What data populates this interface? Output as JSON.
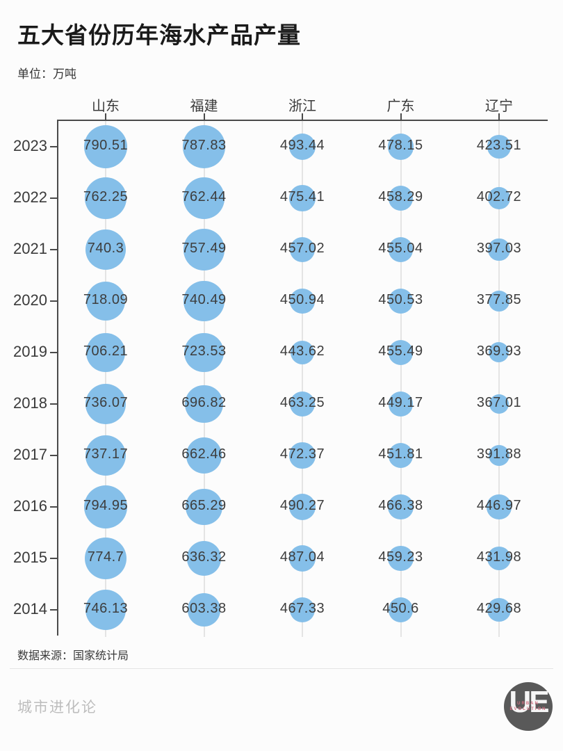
{
  "header": {
    "title": "五大省份历年海水产品产量",
    "unit": "单位：万吨"
  },
  "chart_data": {
    "type": "scatter",
    "subtype": "bubble-matrix",
    "title": "五大省份历年海水产品产量",
    "unit": "万吨",
    "columns": [
      "山东",
      "福建",
      "浙江",
      "广东",
      "辽宁"
    ],
    "rows": [
      "2023",
      "2022",
      "2021",
      "2020",
      "2019",
      "2018",
      "2017",
      "2016",
      "2015",
      "2014"
    ],
    "series": [
      {
        "name": "山东",
        "values": [
          790.51,
          762.25,
          740.3,
          718.09,
          706.21,
          736.07,
          737.17,
          794.95,
          774.7,
          746.13
        ]
      },
      {
        "name": "福建",
        "values": [
          787.83,
          762.44,
          757.49,
          740.49,
          723.53,
          696.82,
          662.46,
          665.29,
          636.32,
          603.38
        ]
      },
      {
        "name": "浙江",
        "values": [
          493.44,
          475.41,
          457.02,
          450.94,
          443.62,
          463.25,
          472.37,
          490.27,
          487.04,
          467.33
        ]
      },
      {
        "name": "广东",
        "values": [
          478.15,
          458.29,
          455.04,
          450.53,
          455.49,
          449.17,
          451.81,
          466.38,
          459.23,
          450.6
        ]
      },
      {
        "name": "辽宁",
        "values": [
          423.51,
          402.72,
          397.03,
          377.85,
          369.93,
          367.01,
          391.88,
          446.97,
          431.98,
          429.68
        ]
      }
    ],
    "bubble_color": "#85bfe9",
    "value_label_color": "#3d3d3d",
    "size_encoding": "bubble diameter proportional to value",
    "legend_position": "none",
    "grid": "vertical-only"
  },
  "footer": {
    "source": "数据来源：国家统计局",
    "brand": "城市进化论",
    "logo_text": "UE",
    "logo_sub_line1": "URBAN",
    "logo_sub_line2": "EVOLUTION",
    "logo_accent_color": "#cf6f81"
  }
}
